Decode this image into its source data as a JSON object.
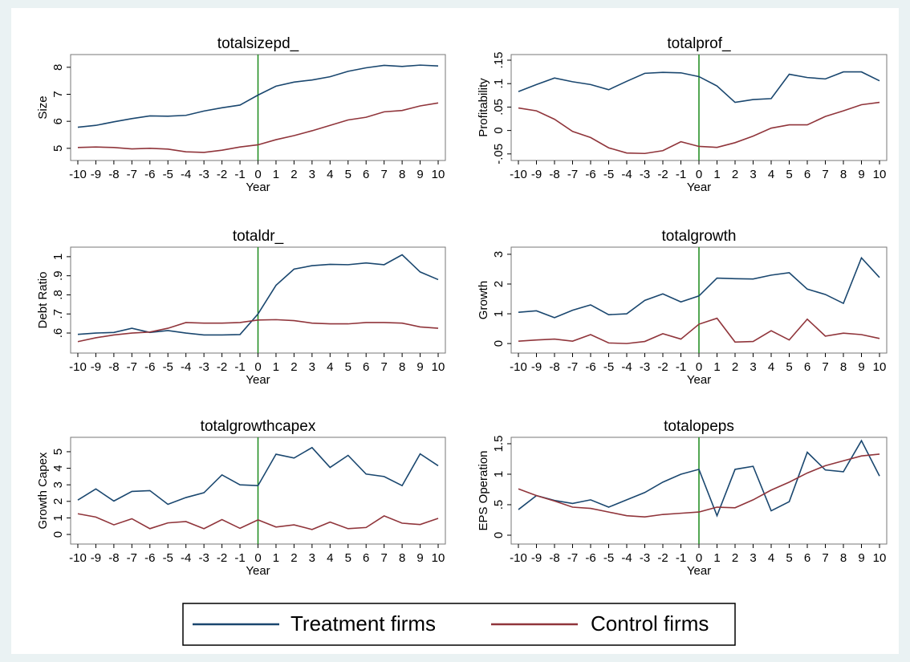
{
  "chart_data": [
    {
      "type": "line",
      "title": "totalsizepd_",
      "xlabel": "Year",
      "ylabel": "Size",
      "x": [
        -10,
        -9,
        -8,
        -7,
        -6,
        -5,
        -4,
        -3,
        -2,
        -1,
        0,
        1,
        2,
        3,
        4,
        5,
        6,
        7,
        8,
        9,
        10
      ],
      "xlim": [
        -10.4,
        10.4
      ],
      "xticks": [
        -10,
        -9,
        -8,
        -7,
        -6,
        -5,
        -4,
        -3,
        -2,
        -1,
        0,
        1,
        2,
        3,
        4,
        5,
        6,
        7,
        8,
        9,
        10
      ],
      "ylim": [
        4.55,
        8.47
      ],
      "yticks": [
        5,
        6,
        7,
        8
      ],
      "xline": 0,
      "xline_color": "#1a8a1a",
      "series": [
        {
          "name": "Treatment firms",
          "color": "#1a476f",
          "values": [
            5.78,
            5.85,
            5.98,
            6.1,
            6.2,
            6.19,
            6.22,
            6.38,
            6.5,
            6.6,
            6.97,
            7.3,
            7.45,
            7.53,
            7.65,
            7.85,
            7.98,
            8.07,
            8.03,
            8.08,
            8.05
          ]
        },
        {
          "name": "Control firms",
          "color": "#90353b",
          "values": [
            5.03,
            5.05,
            5.03,
            4.98,
            5.0,
            4.97,
            4.87,
            4.85,
            4.93,
            5.05,
            5.13,
            5.32,
            5.47,
            5.65,
            5.85,
            6.05,
            6.15,
            6.35,
            6.4,
            6.57,
            6.68
          ]
        }
      ]
    },
    {
      "type": "line",
      "title": "totalprof_",
      "xlabel": "Year",
      "ylabel": "Profitability",
      "x": [
        -10,
        -9,
        -8,
        -7,
        -6,
        -5,
        -4,
        -3,
        -2,
        -1,
        0,
        1,
        2,
        3,
        4,
        5,
        6,
        7,
        8,
        9,
        10
      ],
      "xlim": [
        -10.4,
        10.4
      ],
      "xticks": [
        -10,
        -9,
        -8,
        -7,
        -6,
        -5,
        -4,
        -3,
        -2,
        -1,
        0,
        1,
        2,
        3,
        4,
        5,
        6,
        7,
        8,
        9,
        10
      ],
      "ylim": [
        -0.064,
        0.162
      ],
      "yticks": [
        {
          "value": -0.05,
          "label": "-.05"
        },
        0,
        {
          "value": 0.05,
          "label": ".05"
        },
        {
          "value": 0.1,
          "label": ".1"
        },
        {
          "value": 0.15,
          "label": ".15"
        }
      ],
      "xline": 0,
      "xline_color": "#1a8a1a",
      "series": [
        {
          "name": "Treatment firms",
          "color": "#1a476f",
          "values": [
            0.083,
            0.098,
            0.112,
            0.104,
            0.098,
            0.087,
            0.105,
            0.122,
            0.124,
            0.123,
            0.115,
            0.095,
            0.06,
            0.066,
            0.068,
            0.12,
            0.113,
            0.11,
            0.125,
            0.125,
            0.106
          ]
        },
        {
          "name": "Control firms",
          "color": "#90353b",
          "values": [
            0.048,
            0.042,
            0.024,
            -0.002,
            -0.015,
            -0.037,
            -0.048,
            -0.049,
            -0.043,
            -0.024,
            -0.034,
            -0.036,
            -0.026,
            -0.012,
            0.005,
            0.012,
            0.012,
            0.03,
            0.042,
            0.055,
            0.06
          ]
        }
      ]
    },
    {
      "type": "line",
      "title": "totaldr_",
      "xlabel": "Year",
      "ylabel": "Debt Ratio",
      "x": [
        -10,
        -9,
        -8,
        -7,
        -6,
        -5,
        -4,
        -3,
        -2,
        -1,
        0,
        1,
        2,
        3,
        4,
        5,
        6,
        7,
        8,
        9,
        10
      ],
      "xlim": [
        -10.4,
        10.4
      ],
      "xticks": [
        -10,
        -9,
        -8,
        -7,
        -6,
        -5,
        -4,
        -3,
        -2,
        -1,
        0,
        1,
        2,
        3,
        4,
        5,
        6,
        7,
        8,
        9,
        10
      ],
      "ylim": [
        0.495,
        1.05
      ],
      "yticks": [
        {
          "value": 0.6,
          "label": ".6"
        },
        {
          "value": 0.7,
          "label": ".7"
        },
        {
          "value": 0.8,
          "label": ".8"
        },
        {
          "value": 0.9,
          "label": ".9"
        },
        1
      ],
      "xline": 0,
      "xline_color": "#1a8a1a",
      "series": [
        {
          "name": "Treatment firms",
          "color": "#1a476f",
          "values": [
            0.593,
            0.6,
            0.603,
            0.625,
            0.603,
            0.613,
            0.6,
            0.59,
            0.59,
            0.592,
            0.7,
            0.85,
            0.935,
            0.953,
            0.96,
            0.958,
            0.967,
            0.958,
            1.01,
            0.92,
            0.88
          ]
        },
        {
          "name": "Control firms",
          "color": "#90353b",
          "values": [
            0.555,
            0.575,
            0.59,
            0.6,
            0.605,
            0.625,
            0.655,
            0.652,
            0.652,
            0.655,
            0.668,
            0.67,
            0.665,
            0.652,
            0.648,
            0.648,
            0.655,
            0.655,
            0.652,
            0.632,
            0.625
          ]
        }
      ]
    },
    {
      "type": "line",
      "title": "totalgrowth",
      "xlabel": "Year",
      "ylabel": "Growth",
      "x": [
        -10,
        -9,
        -8,
        -7,
        -6,
        -5,
        -4,
        -3,
        -2,
        -1,
        0,
        1,
        2,
        3,
        4,
        5,
        6,
        7,
        8,
        9,
        10
      ],
      "xlim": [
        -10.4,
        10.4
      ],
      "xticks": [
        -10,
        -9,
        -8,
        -7,
        -6,
        -5,
        -4,
        -3,
        -2,
        -1,
        0,
        1,
        2,
        3,
        4,
        5,
        6,
        7,
        8,
        9,
        10
      ],
      "ylim": [
        -0.32,
        3.24
      ],
      "yticks": [
        0,
        1,
        2,
        3
      ],
      "xline": 0,
      "xline_color": "#1a8a1a",
      "series": [
        {
          "name": "Treatment firms",
          "color": "#1a476f",
          "values": [
            1.05,
            1.1,
            0.87,
            1.12,
            1.3,
            0.97,
            1.0,
            1.45,
            1.67,
            1.4,
            1.6,
            2.2,
            2.18,
            2.17,
            2.3,
            2.38,
            1.83,
            1.65,
            1.35,
            2.88,
            2.22
          ]
        },
        {
          "name": "Control firms",
          "color": "#90353b",
          "values": [
            0.08,
            0.12,
            0.15,
            0.08,
            0.3,
            0.02,
            0.0,
            0.07,
            0.33,
            0.15,
            0.65,
            0.85,
            0.05,
            0.07,
            0.43,
            0.12,
            0.82,
            0.25,
            0.35,
            0.3,
            0.17
          ]
        }
      ]
    },
    {
      "type": "line",
      "title": "totalgrowthcapex",
      "xlabel": "Year",
      "ylabel": "Growth Capex",
      "x": [
        -10,
        -9,
        -8,
        -7,
        -6,
        -5,
        -4,
        -3,
        -2,
        -1,
        0,
        1,
        2,
        3,
        4,
        5,
        6,
        7,
        8,
        9,
        10
      ],
      "xlim": [
        -10.4,
        10.4
      ],
      "xticks": [
        -10,
        -9,
        -8,
        -7,
        -6,
        -5,
        -4,
        -3,
        -2,
        -1,
        0,
        1,
        2,
        3,
        4,
        5,
        6,
        7,
        8,
        9,
        10
      ],
      "ylim": [
        -0.58,
        5.87
      ],
      "yticks": [
        0,
        1,
        2,
        3,
        4,
        5
      ],
      "xline": 0,
      "xline_color": "#1a8a1a",
      "series": [
        {
          "name": "Treatment firms",
          "color": "#1a476f",
          "values": [
            2.08,
            2.75,
            2.02,
            2.6,
            2.65,
            1.82,
            2.23,
            2.52,
            3.6,
            3.0,
            2.95,
            4.85,
            4.62,
            5.25,
            4.05,
            4.78,
            3.65,
            3.5,
            2.95,
            4.87,
            4.15
          ]
        },
        {
          "name": "Control firms",
          "color": "#90353b",
          "values": [
            1.25,
            1.05,
            0.58,
            0.95,
            0.35,
            0.7,
            0.78,
            0.35,
            0.9,
            0.37,
            0.88,
            0.45,
            0.58,
            0.3,
            0.75,
            0.35,
            0.42,
            1.12,
            0.68,
            0.6,
            0.97
          ]
        }
      ]
    },
    {
      "type": "line",
      "title": "totalopeps",
      "xlabel": "Year",
      "ylabel": "EPS Operation",
      "x": [
        -10,
        -9,
        -8,
        -7,
        -6,
        -5,
        -4,
        -3,
        -2,
        -1,
        0,
        1,
        2,
        3,
        4,
        5,
        6,
        7,
        8,
        9,
        10
      ],
      "xlim": [
        -10.4,
        10.4
      ],
      "xticks": [
        -10,
        -9,
        -8,
        -7,
        -6,
        -5,
        -4,
        -3,
        -2,
        -1,
        0,
        1,
        2,
        3,
        4,
        5,
        6,
        7,
        8,
        9,
        10
      ],
      "ylim": [
        -0.145,
        1.605
      ],
      "yticks": [
        0,
        {
          "value": 0.5,
          "label": ".5"
        },
        1,
        1.5
      ],
      "xline": 0,
      "xline_color": "#1a8a1a",
      "series": [
        {
          "name": "Treatment firms",
          "color": "#1a476f",
          "values": [
            0.42,
            0.65,
            0.57,
            0.52,
            0.58,
            0.46,
            0.58,
            0.7,
            0.87,
            1.0,
            1.08,
            0.32,
            1.08,
            1.13,
            0.4,
            0.55,
            1.36,
            1.07,
            1.04,
            1.55,
            0.97
          ]
        },
        {
          "name": "Control firms",
          "color": "#90353b",
          "values": [
            0.76,
            0.65,
            0.56,
            0.46,
            0.44,
            0.38,
            0.32,
            0.3,
            0.34,
            0.36,
            0.38,
            0.46,
            0.45,
            0.58,
            0.74,
            0.87,
            1.02,
            1.14,
            1.22,
            1.3,
            1.33
          ]
        }
      ]
    }
  ]
}
